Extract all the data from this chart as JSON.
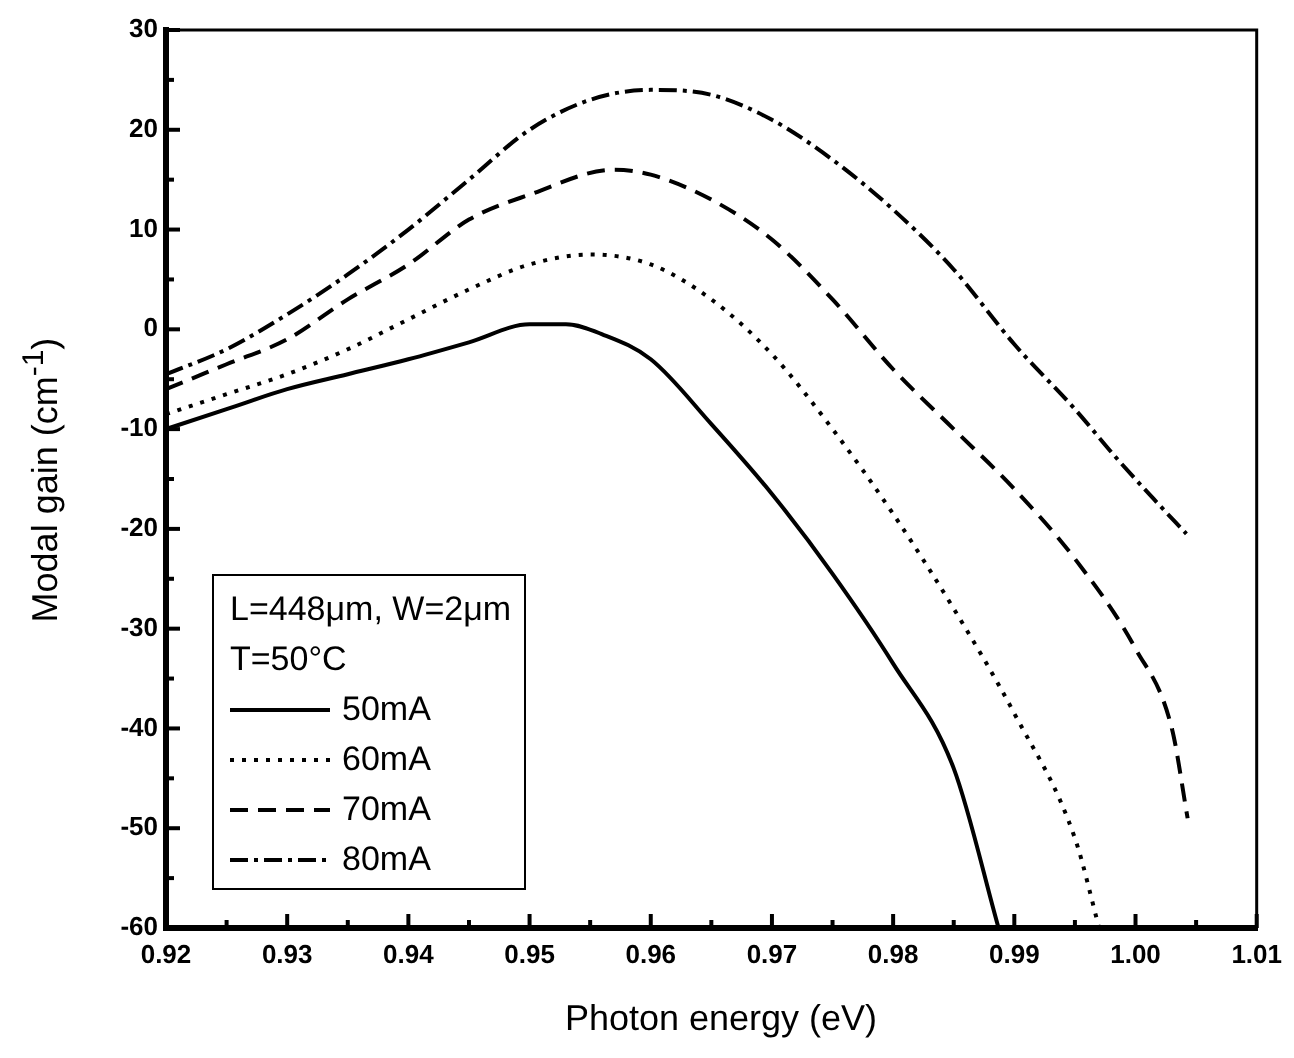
{
  "chart_data": {
    "type": "line",
    "xlabel": "Photon energy (eV)",
    "ylabel": "Modal gain (cm$^{-1}$)",
    "legend_title": "L=448μm, W=2μm\nT=50°C",
    "legend": "bottom left",
    "marker": "none",
    "xlim": [
      0.92,
      1.01
    ],
    "ylim": [
      -60,
      30
    ],
    "xticks": [
      0.92,
      {
        "value": 0.925,
        "label": null
      },
      0.93,
      {
        "value": 0.935,
        "label": null
      },
      0.94,
      {
        "value": 0.945,
        "label": null
      },
      0.95,
      {
        "value": 0.955,
        "label": null
      },
      0.96,
      {
        "value": 0.965,
        "label": null
      },
      0.97,
      {
        "value": 0.975,
        "label": null
      },
      0.98,
      {
        "value": 0.985,
        "label": null
      },
      0.99,
      {
        "value": 0.995,
        "label": null
      },
      {
        "value": 1,
        "label": "1.00"
      },
      {
        "value": 1.005,
        "label": null
      },
      1.01
    ],
    "yticks": [
      -60,
      {
        "value": -55,
        "label": null
      },
      -50,
      {
        "value": -45,
        "label": null
      },
      -40,
      {
        "value": -35,
        "label": null
      },
      -30,
      {
        "value": -25,
        "label": null
      },
      -20,
      {
        "value": -15,
        "label": null
      },
      -10,
      {
        "value": -5,
        "label": null
      },
      0,
      {
        "value": 5,
        "label": null
      },
      10,
      {
        "value": 15,
        "label": null
      },
      20,
      {
        "value": 25,
        "label": null
      },
      30
    ],
    "series": [
      {
        "name": "50mA",
        "color": "#000000",
        "line_style": "solid",
        "x": [
          0.92,
          0.925,
          0.93,
          0.935,
          0.94,
          0.945,
          0.95,
          0.953,
          0.956,
          0.96,
          0.965,
          0.97,
          0.975,
          0.98,
          0.985,
          0.9887
        ],
        "values": [
          -10,
          -8,
          -6,
          -4.5,
          -3,
          -1.3,
          0.5,
          0.5,
          -0.5,
          -3,
          -9.5,
          -16.5,
          -24.5,
          -33.5,
          -44,
          -60
        ]
      },
      {
        "name": "60mA",
        "color": "#000000",
        "line_style": "dotted",
        "x": [
          0.92,
          0.925,
          0.93,
          0.935,
          0.94,
          0.945,
          0.95,
          0.955,
          0.96,
          0.965,
          0.97,
          0.975,
          0.98,
          0.985,
          0.99,
          0.995,
          0.997
        ],
        "values": [
          -8.5,
          -6.5,
          -4.5,
          -2,
          1,
          4,
          6.5,
          7.5,
          6.5,
          3,
          -2.5,
          -10,
          -18.5,
          -28,
          -38.5,
          -51,
          -60
        ]
      },
      {
        "name": "70mA",
        "color": "#000000",
        "line_style": "dashed",
        "x": [
          0.92,
          0.925,
          0.93,
          0.935,
          0.94,
          0.945,
          0.95,
          0.957,
          0.96,
          0.965,
          0.97,
          0.975,
          0.98,
          0.985,
          0.99,
          0.995,
          1.0,
          1.003,
          1.0043
        ],
        "values": [
          -6,
          -3.5,
          -1,
          3,
          6.5,
          11,
          13.5,
          16,
          15.5,
          13,
          9,
          3,
          -4,
          -10,
          -16,
          -23,
          -32,
          -40,
          -49
        ]
      },
      {
        "name": "80mA",
        "color": "#000000",
        "line_style": "dashdot",
        "x": [
          0.92,
          0.925,
          0.93,
          0.935,
          0.94,
          0.945,
          0.95,
          0.955,
          0.96,
          0.965,
          0.97,
          0.975,
          0.98,
          0.985,
          0.99,
          0.995,
          0.9985,
          1.0015,
          1.0042
        ],
        "values": [
          -4.5,
          -2,
          1.5,
          5.5,
          10,
          15,
          20,
          23,
          24,
          23.5,
          21,
          17,
          12,
          6,
          -1.5,
          -8,
          -13,
          -17,
          -20.5
        ]
      }
    ]
  }
}
